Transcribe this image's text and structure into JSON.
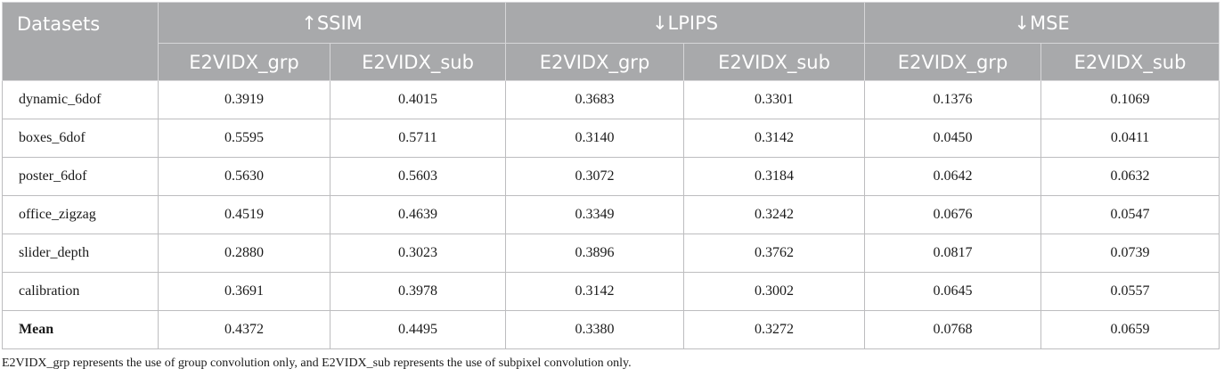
{
  "table": {
    "first_header": "Datasets",
    "metric_groups": [
      {
        "label": "↑SSIM"
      },
      {
        "label": "↓LPIPS"
      },
      {
        "label": "↓MSE"
      }
    ],
    "sub_headers": [
      "E2VIDX_grp",
      "E2VIDX_sub",
      "E2VIDX_grp",
      "E2VIDX_sub",
      "E2VIDX_grp",
      "E2VIDX_sub"
    ],
    "rows": [
      {
        "name": "dynamic_6dof",
        "values": [
          "0.3919",
          "0.4015",
          "0.3683",
          "0.3301",
          "0.1376",
          "0.1069"
        ]
      },
      {
        "name": "boxes_6dof",
        "values": [
          "0.5595",
          "0.5711",
          "0.3140",
          "0.3142",
          "0.0450",
          "0.0411"
        ]
      },
      {
        "name": "poster_6dof",
        "values": [
          "0.5630",
          "0.5603",
          "0.3072",
          "0.3184",
          "0.0642",
          "0.0632"
        ]
      },
      {
        "name": "office_zigzag",
        "values": [
          "0.4519",
          "0.4639",
          "0.3349",
          "0.3242",
          "0.0676",
          "0.0547"
        ]
      },
      {
        "name": "slider_depth",
        "values": [
          "0.2880",
          "0.3023",
          "0.3896",
          "0.3762",
          "0.0817",
          "0.0739"
        ]
      },
      {
        "name": "calibration",
        "values": [
          "0.3691",
          "0.3978",
          "0.3142",
          "0.3002",
          "0.0645",
          "0.0557"
        ]
      },
      {
        "name": "Mean",
        "values": [
          "0.4372",
          "0.4495",
          "0.3380",
          "0.3272",
          "0.0768",
          "0.0659"
        ]
      }
    ]
  },
  "footnote": "E2VIDX_grp represents the use of group convolution only, and E2VIDX_sub represents the use of subpixel convolution only."
}
